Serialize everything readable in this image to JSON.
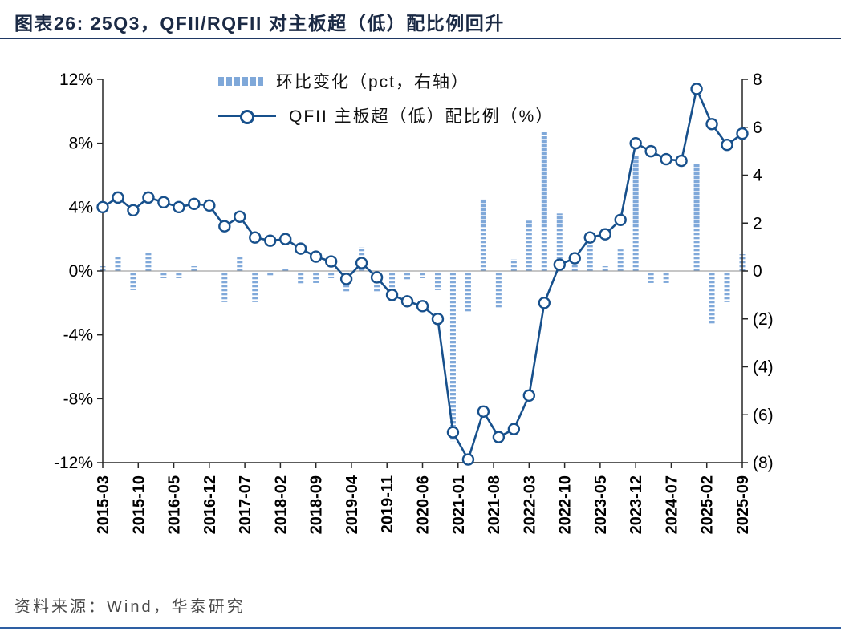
{
  "header": {
    "title": "图表26:  25Q3，QFII/RQFII 对主板超（低）配比例回升"
  },
  "footer": {
    "source": "资料来源：Wind，华泰研究"
  },
  "chart_data": {
    "type": "combo-bar-line",
    "categories": [
      "2015-03",
      "2015-06",
      "2015-09",
      "2015-12",
      "2016-03",
      "2016-06",
      "2016-09",
      "2016-12",
      "2017-03",
      "2017-06",
      "2017-09",
      "2017-12",
      "2018-03",
      "2018-06",
      "2018-09",
      "2018-12",
      "2019-03",
      "2019-06",
      "2019-09",
      "2019-12",
      "2020-03",
      "2020-06",
      "2020-09",
      "2020-12",
      "2021-03",
      "2021-06",
      "2021-09",
      "2021-12",
      "2022-03",
      "2022-06",
      "2022-09",
      "2022-12",
      "2023-03",
      "2023-06",
      "2023-09",
      "2023-12",
      "2024-03",
      "2024-06",
      "2024-09",
      "2024-12",
      "2025-03",
      "2025-06",
      "2025-09"
    ],
    "x_tick_labels": [
      "2015-03",
      "2015-10",
      "2016-05",
      "2016-12",
      "2017-07",
      "2018-02",
      "2018-09",
      "2019-04",
      "2019-11",
      "2020-06",
      "2021-01",
      "2021-08",
      "2022-03",
      "2022-10",
      "2023-05",
      "2023-12",
      "2024-07",
      "2025-02",
      "2025-09"
    ],
    "series": [
      {
        "name": "环比变化（pct，右轴）",
        "type": "bar",
        "axis": "right",
        "values": [
          0.2,
          0.6,
          -0.8,
          0.8,
          -0.3,
          -0.3,
          0.2,
          -0.1,
          -1.3,
          0.6,
          -1.3,
          -0.2,
          0.1,
          -0.6,
          -0.5,
          -0.3,
          -0.9,
          1.0,
          -0.9,
          -1.1,
          -0.4,
          -0.3,
          -0.8,
          -7.1,
          -1.7,
          3.0,
          -1.6,
          0.5,
          2.1,
          5.8,
          2.4,
          0.4,
          1.3,
          0.2,
          0.9,
          4.8,
          -0.5,
          -0.5,
          -0.1,
          4.5,
          -2.2,
          -1.3,
          0.7
        ]
      },
      {
        "name": "QFII 主板超（低）配比例（%）",
        "type": "line",
        "axis": "left",
        "values": [
          4.0,
          4.6,
          3.8,
          4.6,
          4.3,
          4.0,
          4.2,
          4.1,
          2.8,
          3.4,
          2.1,
          1.9,
          2.0,
          1.4,
          0.9,
          0.6,
          -0.5,
          0.5,
          -0.4,
          -1.5,
          -1.9,
          -2.2,
          -3.0,
          -10.1,
          -11.8,
          -8.8,
          -10.4,
          -9.9,
          -7.8,
          -2.0,
          0.4,
          0.8,
          2.1,
          2.3,
          3.2,
          8.0,
          7.5,
          7.0,
          6.9,
          11.4,
          9.2,
          7.9,
          8.6
        ]
      }
    ],
    "left_axis": {
      "min": -12,
      "max": 12,
      "tick_values": [
        12,
        8,
        4,
        0,
        -4,
        -8,
        -12
      ],
      "tick_labels": [
        "12%",
        "8%",
        "4%",
        "0%",
        "-4%",
        "-8%",
        "-12%"
      ]
    },
    "right_axis": {
      "min": -8,
      "max": 8,
      "tick_values": [
        8,
        6,
        4,
        2,
        0,
        -2,
        -4,
        -6,
        -8
      ],
      "tick_labels": [
        "8",
        "6",
        "4",
        "2",
        "0",
        "(2)",
        "(4)",
        "(6)",
        "(8)"
      ]
    },
    "colors": {
      "bar": "#7FA8D9",
      "line": "#17508C",
      "axis": "#262626",
      "zero_line": "#8c8c8c",
      "title": "#1b2a45",
      "header_rule": "#1f3864",
      "footer_rule": "#2e5fa3"
    },
    "legend_position": "top-center",
    "grid": false
  }
}
